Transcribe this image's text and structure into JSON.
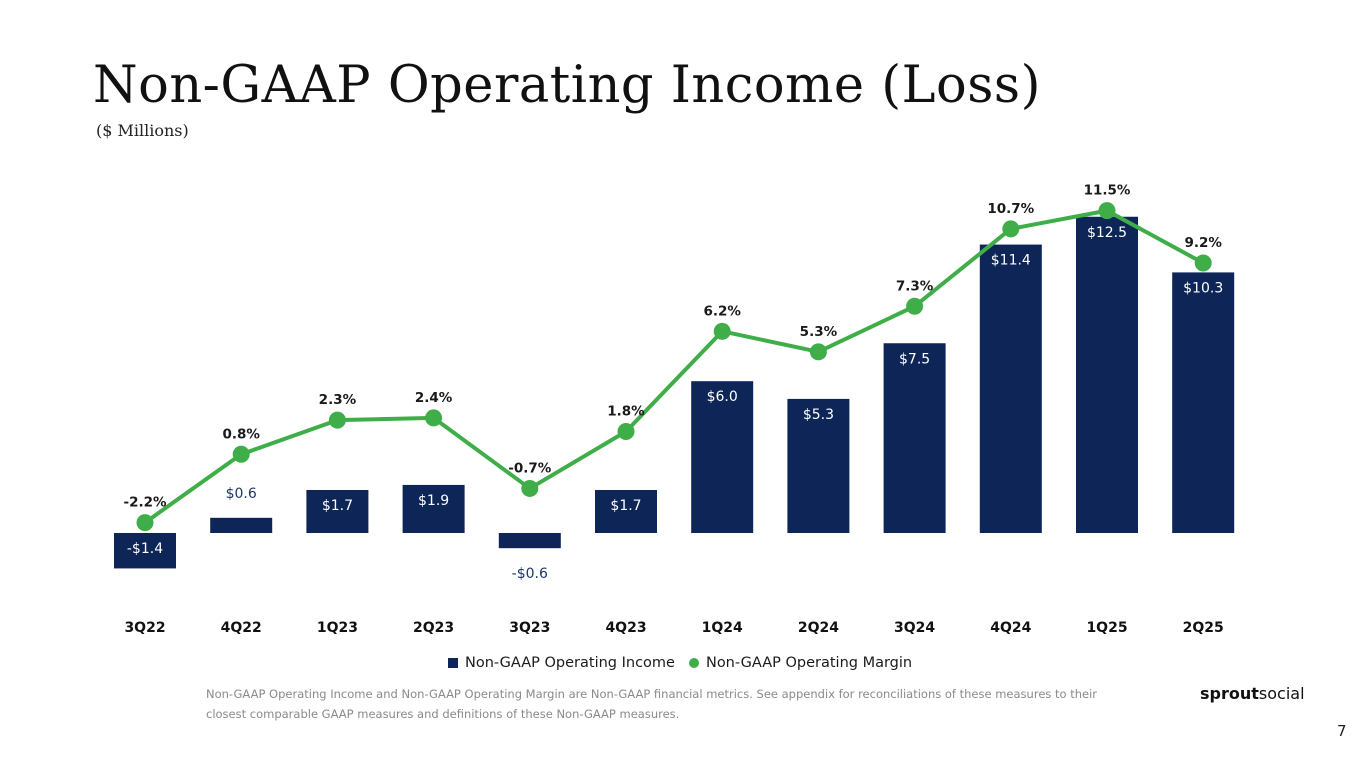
{
  "page": {
    "title": "Non-GAAP Operating Income (Loss)",
    "subtitle": "($ Millions)",
    "footnote": "Non-GAAP Operating Income and Non-GAAP Operating Margin are Non-GAAP financial metrics. See appendix for reconciliations of these measures to their closest comparable GAAP measures and definitions of these Non-GAAP measures.",
    "logo_bold": "sprout",
    "logo_light": "social",
    "page_number": "7"
  },
  "colors": {
    "bar": "#0d2557",
    "line": "#3fae49",
    "bar_label_inside": "#ffffff",
    "bar_label_outside": "#1c3667"
  },
  "chart_data": {
    "type": "bar+line",
    "categories": [
      "3Q22",
      "4Q22",
      "1Q23",
      "2Q23",
      "3Q23",
      "4Q23",
      "1Q24",
      "2Q24",
      "3Q24",
      "4Q24",
      "1Q25",
      "2Q25"
    ],
    "series": [
      {
        "name": "Non-GAAP Operating Income",
        "type": "bar",
        "values": [
          -1.4,
          0.6,
          1.7,
          1.9,
          -0.6,
          1.7,
          6.0,
          5.3,
          7.5,
          11.4,
          12.5,
          10.3
        ],
        "labels": [
          "-$1.4",
          "$0.6",
          "$1.7",
          "$1.9",
          "-$0.6",
          "$1.7",
          "$6.0",
          "$5.3",
          "$7.5",
          "$11.4",
          "$12.5",
          "$10.3"
        ]
      },
      {
        "name": "Non-GAAP Operating Margin",
        "type": "line",
        "values": [
          -2.2,
          0.8,
          2.3,
          2.4,
          -0.7,
          1.8,
          6.2,
          5.3,
          7.3,
          10.7,
          11.5,
          9.2
        ],
        "labels": [
          "-2.2%",
          "0.8%",
          "2.3%",
          "2.4%",
          "-0.7%",
          "1.8%",
          "6.2%",
          "5.3%",
          "7.3%",
          "10.7%",
          "11.5%",
          "9.2%"
        ]
      }
    ],
    "legend": [
      "Non-GAAP Operating Income",
      "Non-GAAP Operating Margin"
    ],
    "legend_position": "bottom-center",
    "grid": false
  }
}
